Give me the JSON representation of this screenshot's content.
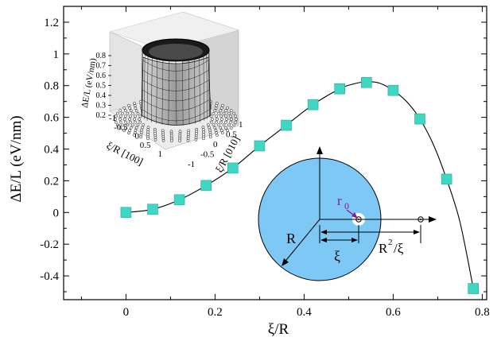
{
  "chart_data": {
    "type": "line",
    "xlabel": "ξ/R",
    "ylabel": "ΔE/L (eV/nm)",
    "xlim": [
      -0.14,
      0.81
    ],
    "ylim": [
      -0.55,
      1.3
    ],
    "xticks": [
      "0",
      "0.2",
      "0.4",
      "0.6",
      "0.8"
    ],
    "yticks": [
      "-0.4",
      "-0.2",
      "0",
      "0.2",
      "0.4",
      "0.6",
      "0.8",
      "1",
      "1.2"
    ],
    "series": [
      {
        "style": "markers",
        "marker": "square",
        "color": "#3fd6c4",
        "x": [
          0.0,
          0.06,
          0.12,
          0.18,
          0.24,
          0.3,
          0.36,
          0.42,
          0.48,
          0.54,
          0.6,
          0.66,
          0.72,
          0.78
        ],
        "y": [
          0.0,
          0.02,
          0.08,
          0.17,
          0.28,
          0.42,
          0.55,
          0.68,
          0.78,
          0.82,
          0.77,
          0.59,
          0.21,
          -0.48
        ]
      },
      {
        "style": "line",
        "color": "#000000",
        "x": [
          0.0,
          0.06,
          0.12,
          0.18,
          0.24,
          0.3,
          0.36,
          0.42,
          0.48,
          0.51,
          0.54,
          0.57,
          0.6,
          0.63,
          0.66,
          0.69,
          0.72,
          0.75,
          0.78
        ],
        "y": [
          0.0,
          0.02,
          0.08,
          0.17,
          0.28,
          0.42,
          0.55,
          0.68,
          0.78,
          0.81,
          0.825,
          0.815,
          0.77,
          0.7,
          0.59,
          0.43,
          0.21,
          -0.06,
          -0.48
        ]
      }
    ],
    "grid": false,
    "insets": {
      "surface_plot": {
        "zlabel": "ΔE/L (eV/nm)",
        "zticks": [
          "0.2",
          "0.3",
          "0.4",
          "0.5",
          "0.6",
          "0.7",
          "0.8"
        ],
        "xlabel": "ξ/R [100]",
        "xticks": [
          "-1",
          "-0.5",
          "0",
          "0.5",
          "1"
        ],
        "ylabel": "ξ/R [010]",
        "yticks": [
          "-1",
          "-0.5",
          "0",
          "0.5",
          "1"
        ]
      },
      "geometry_diagram": {
        "disk_color": "#7ec8f5",
        "labels": {
          "radius": "R",
          "r0_base": "r",
          "r0_sub": "0",
          "xi": "ξ",
          "image_base": "R",
          "image_sup": "2",
          "image_rest": "/ξ"
        },
        "colors": {
          "r0_label": "#8b1a8b"
        }
      }
    }
  }
}
